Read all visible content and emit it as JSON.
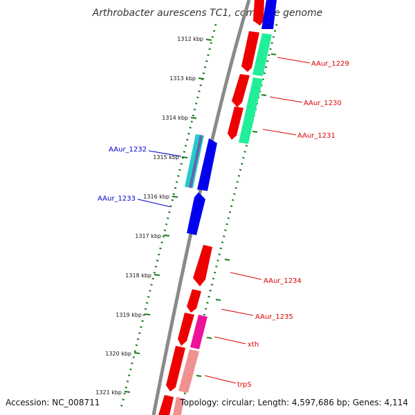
{
  "title": "Arthrobacter aurescens TC1, complete genome",
  "footer": {
    "accession": "Accession: NC_008711",
    "summary": "Topology: circular; Length: 4,597,686 bp; Genes: 4,114"
  },
  "kbp_ticks": [
    "1312 kbp",
    "1313 kbp",
    "1314 kbp",
    "1315 kbp",
    "1316 kbp",
    "1317 kbp",
    "1318 kbp",
    "1319 kbp",
    "1320 kbp",
    "1321 kbp"
  ],
  "gene_labels": [
    {
      "text": "AAur_1229",
      "color": "#dd0000"
    },
    {
      "text": "AAur_1230",
      "color": "#dd0000"
    },
    {
      "text": "AAur_1231",
      "color": "#dd0000"
    },
    {
      "text": "AAur_1232",
      "color": "#0000cc"
    },
    {
      "text": "AAur_1233",
      "color": "#0000cc"
    },
    {
      "text": "AAur_1234",
      "color": "#dd0000"
    },
    {
      "text": "AAur_1235",
      "color": "#dd0000"
    },
    {
      "text": "xth",
      "color": "#dd0000"
    },
    {
      "text": "trpS",
      "color": "#dd0000"
    }
  ],
  "colors": {
    "backbone": "#8a8a8a",
    "tick_dots": "#1a7a1a",
    "forward_gene": "#ee0000",
    "reverse_gene": "#0000ee",
    "feature_green": "#22ee99",
    "feature_magenta": "#ee1199",
    "feature_pink": "#f09090",
    "feature_cyan": "#22cccc"
  }
}
